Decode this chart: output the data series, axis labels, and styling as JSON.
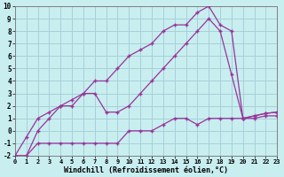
{
  "background_color": "#c8eef0",
  "grid_color": "#a8d0d8",
  "line_color": "#993399",
  "marker": "+",
  "xlabel": "Windchill (Refroidissement éolien,°C)",
  "xlim": [
    0,
    23
  ],
  "ylim": [
    -2,
    10
  ],
  "yticks": [
    -2,
    -1,
    0,
    1,
    2,
    3,
    4,
    5,
    6,
    7,
    8,
    9,
    10
  ],
  "xticks": [
    0,
    1,
    2,
    3,
    4,
    5,
    6,
    7,
    8,
    9,
    10,
    11,
    12,
    13,
    14,
    15,
    16,
    17,
    18,
    19,
    20,
    21,
    22,
    23
  ],
  "line1_x": [
    0,
    1,
    2,
    3,
    4,
    5,
    6,
    7,
    8,
    9,
    10,
    11,
    12,
    13,
    14,
    15,
    16,
    17,
    18,
    19,
    20,
    21,
    22,
    23
  ],
  "line1_y": [
    -2,
    -2,
    -1,
    -1,
    -1,
    -1,
    -1,
    -1,
    -1,
    -1,
    0,
    0,
    0,
    0.5,
    1,
    1,
    0.5,
    1,
    1,
    1,
    1,
    1,
    1.2,
    1.2
  ],
  "line2_x": [
    0,
    1,
    2,
    3,
    4,
    5,
    6,
    7,
    8,
    9,
    10,
    11,
    12,
    13,
    14,
    15,
    16,
    17,
    18,
    19,
    20,
    21,
    22,
    23
  ],
  "line2_y": [
    -2,
    -0.5,
    1,
    1.5,
    2,
    2.5,
    3,
    3,
    1.5,
    1.5,
    2,
    3,
    4,
    5,
    6,
    7,
    8,
    9,
    8,
    4.5,
    1,
    1.2,
    1.4,
    1.5
  ],
  "line3_x": [
    0,
    1,
    2,
    3,
    4,
    5,
    6,
    7,
    8,
    9,
    10,
    11,
    12,
    13,
    14,
    15,
    16,
    17,
    18,
    19,
    20,
    21,
    22,
    23
  ],
  "line3_y": [
    -2,
    -2,
    0,
    1,
    2,
    2,
    3,
    4,
    4,
    5,
    6,
    6.5,
    7,
    8,
    8.5,
    8.5,
    9.5,
    10,
    8.5,
    8,
    1,
    1.2,
    1.4,
    1.5
  ]
}
